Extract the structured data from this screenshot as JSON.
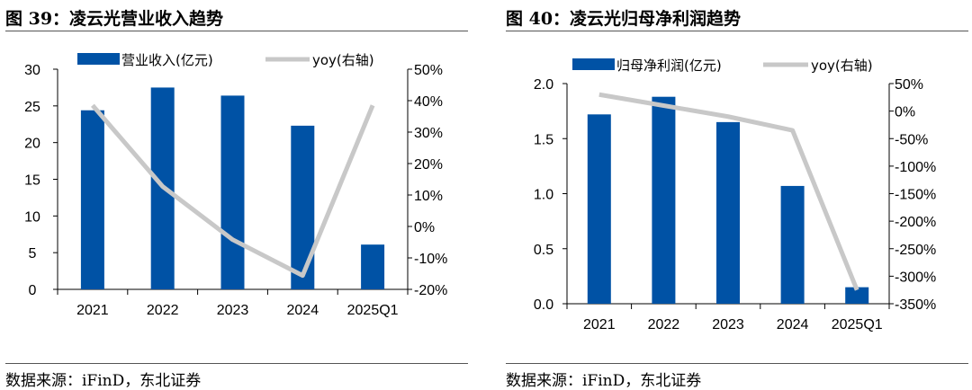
{
  "figures": [
    {
      "title": "图 39：凌云光营业收入趋势",
      "source": "数据来源：iFinD，东北证券",
      "chart_data": {
        "type": "bar",
        "categories": [
          "2021",
          "2022",
          "2023",
          "2024",
          "2025Q1"
        ],
        "series": [
          {
            "name": "营业收入(亿元)",
            "type": "bar",
            "axis": "left",
            "color": "#0052a5",
            "values": [
              24.4,
              27.5,
              26.4,
              22.3,
              6.1
            ]
          },
          {
            "name": "yoy(右轴)",
            "type": "line",
            "axis": "right",
            "color": "#c8c8c8",
            "values": [
              38.5,
              12.7,
              -4.2,
              -15.6,
              38.5
            ]
          }
        ],
        "left_axis": {
          "ylim": [
            0,
            30
          ],
          "ticks": [
            0,
            5,
            10,
            15,
            20,
            25,
            30
          ],
          "tick_labels": [
            "0",
            "5",
            "10",
            "15",
            "20",
            "25",
            "30"
          ]
        },
        "right_axis": {
          "ylim": [
            -20,
            50
          ],
          "ticks": [
            -20,
            -10,
            0,
            10,
            20,
            30,
            40,
            50
          ],
          "tick_labels": [
            "-20%",
            "-10%",
            "0%",
            "10%",
            "20%",
            "30%",
            "40%",
            "50%"
          ]
        },
        "legend": "top",
        "grid": false
      }
    },
    {
      "title": "图 40：凌云光归母净利润趋势",
      "source": "数据来源：iFinD，东北证券",
      "chart_data": {
        "type": "bar",
        "categories": [
          "2021",
          "2022",
          "2023",
          "2024",
          "2025Q1"
        ],
        "series": [
          {
            "name": "归母净利润(亿元)",
            "type": "bar",
            "axis": "left",
            "color": "#0052a5",
            "values": [
              1.72,
              1.88,
              1.65,
              1.07,
              0.15
            ]
          },
          {
            "name": "yoy(右轴)",
            "type": "line",
            "axis": "right",
            "color": "#c8c8c8",
            "values": [
              30,
              10,
              -10,
              -35,
              -325
            ]
          }
        ],
        "left_axis": {
          "ylim": [
            0,
            2
          ],
          "ticks": [
            0,
            0.5,
            1,
            1.5,
            2
          ],
          "tick_labels": [
            "0.0",
            "0.5",
            "1.0",
            "1.5",
            "2.0"
          ]
        },
        "right_axis": {
          "ylim": [
            -350,
            50
          ],
          "ticks": [
            -350,
            -300,
            -250,
            -200,
            -150,
            -100,
            -50,
            0,
            50
          ],
          "tick_labels": [
            "-350%",
            "-300%",
            "-250%",
            "-200%",
            "-150%",
            "-100%",
            "-50%",
            "0%",
            "50%"
          ]
        },
        "legend": "top",
        "grid": false
      }
    }
  ]
}
